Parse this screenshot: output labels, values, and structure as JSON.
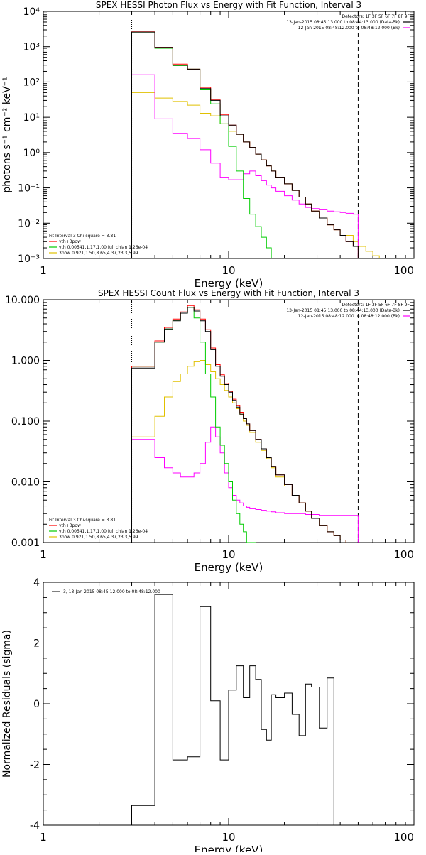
{
  "chart_data": [
    {
      "type": "line",
      "title": "SPEX HESSI Photon Flux vs Energy with Fit Function, Interval 3",
      "xlabel": "Energy (keV)",
      "ylabel": "photons s⁻¹ cm⁻² keV⁻¹",
      "xlog": true,
      "ylog": true,
      "xlim": [
        1,
        100
      ],
      "ylim": [
        0.001,
        10000
      ],
      "xticks": [
        {
          "v": 1,
          "label": "1"
        },
        {
          "v": 10,
          "label": "10"
        },
        {
          "v": 100,
          "label": "100"
        }
      ],
      "yticks": [
        {
          "v": 0.001,
          "label": "10⁻³"
        },
        {
          "v": 0.01,
          "label": "10⁻²"
        },
        {
          "v": 0.1,
          "label": "10⁻¹"
        },
        {
          "v": 1,
          "label": "10⁰"
        },
        {
          "v": 10,
          "label": "10¹"
        },
        {
          "v": 100,
          "label": "10²"
        },
        {
          "v": 1000,
          "label": "10³"
        },
        {
          "v": 10000,
          "label": "10⁴"
        }
      ],
      "edges": [
        3,
        4,
        5,
        6,
        7,
        8,
        9,
        10,
        11,
        12,
        13,
        14,
        15,
        16,
        17,
        18,
        20,
        22,
        24,
        26,
        28,
        31,
        34,
        37,
        40,
        43,
        47,
        50,
        55,
        60,
        65,
        70,
        75
      ],
      "vlines": [
        {
          "x": 3,
          "style": "dotted"
        },
        {
          "x": 50,
          "style": "dashed"
        }
      ],
      "header": [
        {
          "text": "Detectors: 1F 3F 5F 6F 7F 8F 9F",
          "color": ""
        },
        {
          "text": "13-Jan-2015 08:45:13.000 to 08:44:13.000 (Data-Bk)",
          "color": "#000000"
        },
        {
          "text": "12-Jan-2015 08:48:12.000 to 08:48:12.000 (Bk)",
          "color": "#ff00ff"
        }
      ],
      "fit_info": [
        {
          "text": "Fit Interval 3   Chi-square = 3.81",
          "color": ""
        },
        {
          "text": "vth+3pow",
          "color": "#ff0000"
        },
        {
          "text": "vth 0.00541,1.17,1.00  full chian 1.26e-04",
          "color": "#00cc00"
        },
        {
          "text": "3pow 0.921,1.50,8.65,4.37,23.3,5.99",
          "color": "#e0c000"
        }
      ],
      "series": [
        {
          "color": "#000000",
          "values": [
            2600,
            950,
            300,
            230,
            65,
            30,
            11,
            6,
            3.3,
            2.0,
            1.4,
            0.9,
            0.62,
            0.42,
            0.3,
            0.2,
            0.13,
            0.085,
            0.055,
            0.035,
            0.022,
            0.014,
            0.009,
            0.0065,
            0.0045,
            0.003,
            0.0022,
            null
          ]
        },
        {
          "color": "#ff0000",
          "values": [
            2650,
            960,
            320,
            230,
            70,
            31,
            12,
            6,
            3.3,
            2.0,
            1.4,
            0.9,
            0.62,
            0.42,
            0.3,
            0.2,
            0.13,
            0.085,
            0.055,
            0.035,
            0.022,
            0.014,
            0.009,
            0.0065,
            0.0045,
            0.003,
            0.0022,
            null
          ]
        },
        {
          "color": "#00cc00",
          "values": [
            2600,
            900,
            290,
            230,
            60,
            24,
            6.5,
            1.5,
            0.3,
            0.05,
            0.018,
            0.008,
            0.004,
            0.002,
            0.001,
            0.0008,
            null,
            null,
            null,
            null,
            null,
            null,
            null,
            null,
            null,
            null,
            null,
            null
          ]
        },
        {
          "color": "#e0c000",
          "values": [
            null,
            null,
            null,
            null,
            null,
            null,
            null,
            null,
            null,
            null,
            null,
            null,
            null,
            null,
            null,
            null,
            null,
            null,
            null,
            null,
            null,
            null,
            null,
            null,
            null,
            0.0045,
            0.003,
            0.0022,
            0.0016,
            0.0012,
            0.0009,
            0.0007
          ],
          "start_values": [
            50,
            35,
            28,
            22,
            13,
            11,
            6.5,
            4,
            3.3,
            2.0,
            1.4,
            0.9,
            0.62,
            0.42,
            0.3,
            0.2,
            0.13,
            0.085,
            0.055,
            0.035,
            0.022,
            0.014,
            0.009,
            0.0065,
            0.0045
          ]
        },
        {
          "color": "#ff00ff",
          "values": [
            160,
            9,
            3.5,
            2.5,
            1.2,
            0.5,
            0.2,
            0.17,
            0.17,
            0.25,
            0.3,
            0.22,
            0.16,
            0.12,
            0.1,
            0.08,
            0.06,
            0.045,
            0.035,
            0.028,
            0.026,
            0.024,
            0.022,
            0.021,
            0.02,
            0.019,
            0.018,
            null
          ]
        }
      ]
    },
    {
      "type": "line",
      "title": "SPEX HESSI Count Flux vs Energy with Fit Function, Interval 3",
      "xlabel": "Energy (keV)",
      "ylabel": "",
      "xlog": true,
      "ylog": true,
      "xlim": [
        1,
        100
      ],
      "ylim": [
        0.001,
        10
      ],
      "xticks": [
        {
          "v": 1,
          "label": "1"
        },
        {
          "v": 10,
          "label": "10"
        },
        {
          "v": 100,
          "label": "100"
        }
      ],
      "yticks": [
        {
          "v": 0.001,
          "label": "0.001"
        },
        {
          "v": 0.01,
          "label": "0.010"
        },
        {
          "v": 0.1,
          "label": "0.100"
        },
        {
          "v": 1,
          "label": "1.000"
        },
        {
          "v": 10,
          "label": "10.000"
        }
      ],
      "edges": [
        3,
        4,
        4.5,
        5,
        5.5,
        6,
        6.5,
        7,
        7.5,
        8,
        8.5,
        9,
        9.5,
        10,
        10.5,
        11,
        11.5,
        12,
        12.5,
        13,
        14,
        15,
        16,
        17,
        18,
        20,
        22,
        24,
        26,
        28,
        31,
        34,
        37,
        40,
        43,
        47,
        50
      ],
      "vlines": [
        {
          "x": 3,
          "style": "dotted"
        },
        {
          "x": 50,
          "style": "dashed"
        }
      ],
      "header": [
        {
          "text": "Detectors: 1F 3F 5F 6F 7F 8F 9F",
          "color": ""
        },
        {
          "text": "13-Jan-2015 08:45:13.000 to 08:44:13.000 (Data-Bk)",
          "color": "#000000"
        },
        {
          "text": "12-Jan-2015 08:48:12.000 to 08:48:12.000 (Bk)",
          "color": "#ff00ff"
        }
      ],
      "fit_info": [
        {
          "text": "Fit Interval 3   Chi-square = 3.81",
          "color": ""
        },
        {
          "text": "vth+3pow",
          "color": "#ff0000"
        },
        {
          "text": "vth 0.00541,1.17,1.00  full chian 1.26e-04",
          "color": "#00cc00"
        },
        {
          "text": "3pow 0.921,1.50,8.65,4.37,23.3,5.99",
          "color": "#e0c000"
        }
      ],
      "series": [
        {
          "color": "#000000",
          "values": [
            0.75,
            2.0,
            3.3,
            4.5,
            6.0,
            7.5,
            6.5,
            4.5,
            3.0,
            1.5,
            0.8,
            0.55,
            0.4,
            0.3,
            0.22,
            0.17,
            0.13,
            0.11,
            0.09,
            0.07,
            0.05,
            0.035,
            0.025,
            0.018,
            0.013,
            0.009,
            0.006,
            0.0045,
            0.0033,
            0.0025,
            0.0019,
            0.0015,
            0.0013,
            0.0011,
            0.001,
            0.001
          ]
        },
        {
          "color": "#ff0000",
          "values": [
            0.8,
            2.1,
            3.5,
            4.8,
            6.3,
            8.0,
            6.8,
            4.8,
            3.2,
            1.6,
            0.85,
            0.58,
            0.42,
            0.31,
            0.23,
            0.18,
            0.14,
            0.11,
            0.09,
            0.07,
            0.05,
            0.035,
            0.025,
            0.018,
            0.013,
            0.009,
            0.006,
            0.0045,
            0.0033,
            0.0025,
            0.0019,
            0.0015,
            0.0013,
            0.0011,
            0.001,
            0.001
          ]
        },
        {
          "color": "#00cc00",
          "values": [
            0.8,
            2.0,
            3.3,
            4.6,
            6.0,
            7.5,
            5.0,
            2.0,
            0.6,
            0.25,
            0.08,
            0.04,
            0.02,
            0.01,
            0.005,
            0.003,
            0.002,
            0.0015,
            0.001,
            0.001,
            null,
            null,
            null,
            null,
            null,
            null,
            null,
            null,
            null,
            null,
            null,
            null,
            null,
            null,
            null,
            null
          ]
        },
        {
          "color": "#e0c000",
          "values": [
            0.055,
            0.12,
            0.25,
            0.45,
            0.6,
            0.8,
            0.95,
            1.0,
            0.85,
            0.65,
            0.5,
            0.4,
            0.32,
            0.25,
            0.2,
            0.16,
            0.13,
            0.1,
            0.085,
            0.065,
            0.045,
            0.033,
            0.024,
            0.017,
            0.012,
            0.0085,
            0.006,
            0.0045,
            0.0033,
            0.0025,
            0.0019,
            0.0015,
            0.0013,
            0.0011,
            0.001,
            0.001
          ]
        },
        {
          "color": "#ff00ff",
          "values": [
            0.05,
            0.025,
            0.017,
            0.014,
            0.012,
            0.012,
            0.014,
            0.02,
            0.045,
            0.08,
            0.055,
            0.03,
            0.014,
            0.008,
            0.006,
            0.005,
            0.0045,
            0.004,
            0.0038,
            0.0036,
            0.0035,
            0.0034,
            0.0033,
            0.0032,
            0.0031,
            0.003,
            0.003,
            0.003,
            0.0029,
            0.0029,
            0.0028,
            0.0028,
            0.0028,
            0.0028,
            0.0028,
            0.0028
          ]
        }
      ]
    },
    {
      "type": "line",
      "title": "",
      "xlabel": "Energy (keV)",
      "ylabel": "Normalized Residuals (sigma)",
      "xlog": true,
      "ylog": false,
      "xlim": [
        1,
        100
      ],
      "ylim": [
        -4,
        4
      ],
      "xticks": [
        {
          "v": 1,
          "label": "1"
        },
        {
          "v": 10,
          "label": "10"
        },
        {
          "v": 100,
          "label": "100"
        }
      ],
      "yticks": [
        {
          "v": -4,
          "label": "-4"
        },
        {
          "v": -2,
          "label": "-2"
        },
        {
          "v": 0,
          "label": "0"
        },
        {
          "v": 2,
          "label": "2"
        },
        {
          "v": 4,
          "label": "4"
        }
      ],
      "edges": [
        3,
        4,
        5,
        6,
        7,
        8,
        9,
        10,
        11,
        12,
        13,
        14,
        15,
        16,
        17,
        18,
        20,
        22,
        24,
        26,
        28,
        31,
        34,
        37,
        40,
        43,
        47,
        50
      ],
      "vlines": [],
      "legend": {
        "text": "3, 13-Jan-2015 08:45:12.000 to 08:48:12.000",
        "color": "#000000"
      },
      "series": [
        {
          "color": "#000000",
          "values": [
            -3.35,
            3.6,
            -1.85,
            -1.75,
            3.2,
            0.1,
            -1.85,
            0.45,
            1.25,
            0.2,
            1.25,
            0.8,
            -0.85,
            -1.2,
            0.3,
            0.2,
            0.35,
            -0.35,
            -1.05,
            0.65,
            0.55,
            -0.8,
            0.85
          ]
        }
      ]
    }
  ]
}
